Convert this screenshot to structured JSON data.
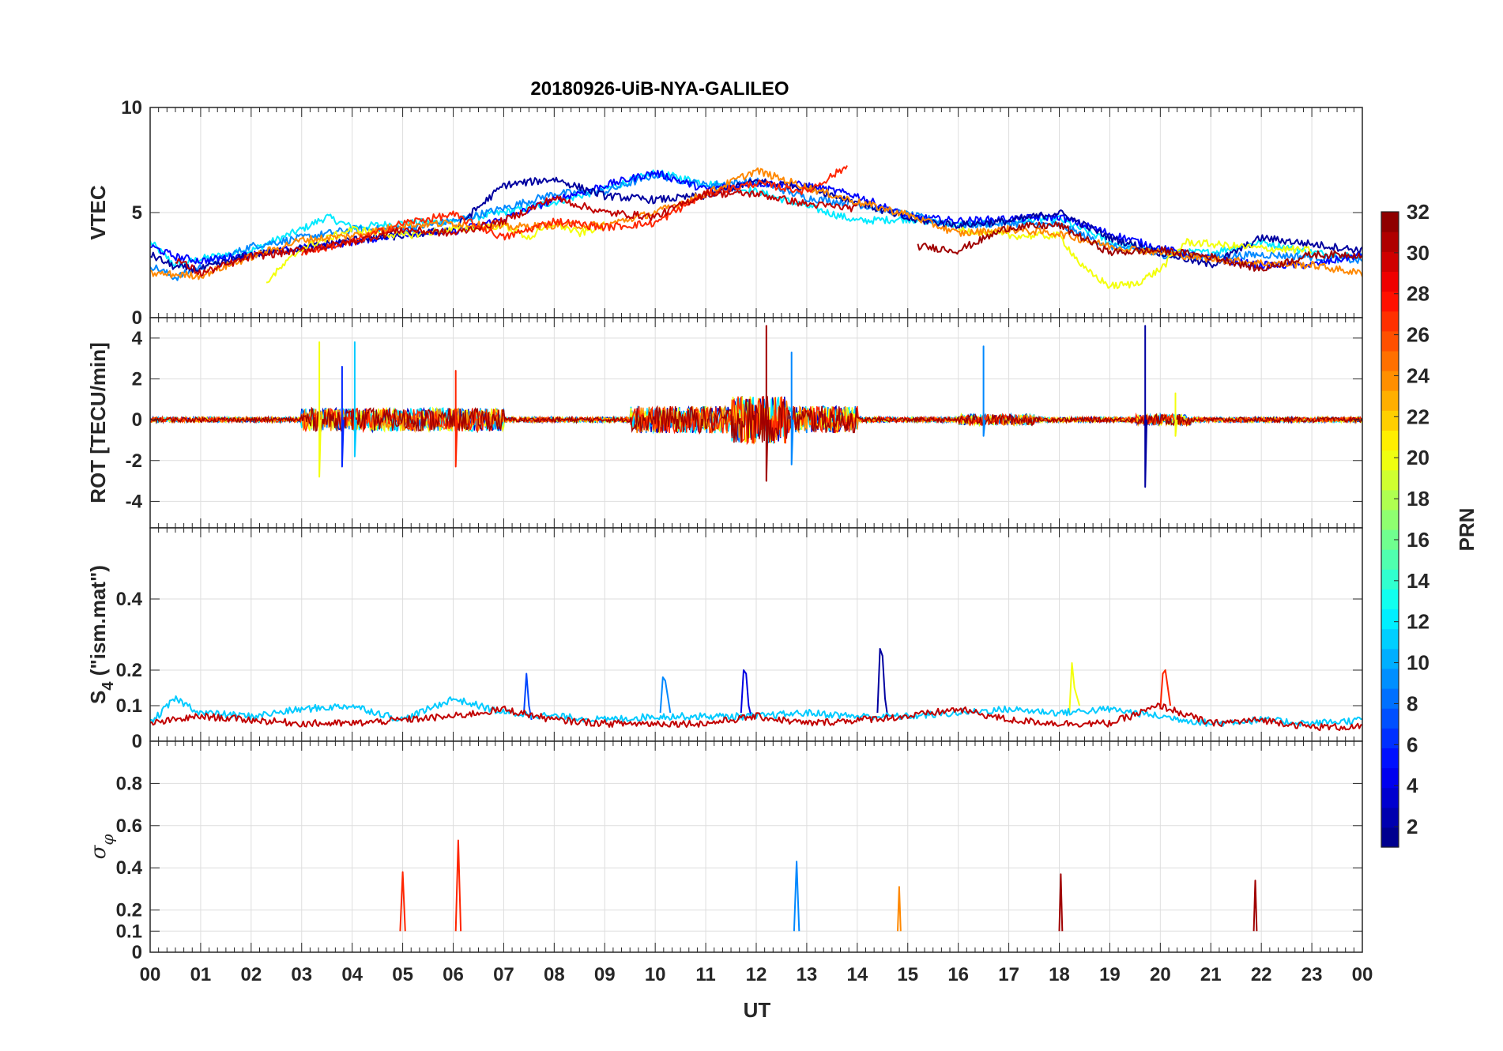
{
  "chart_data": {
    "title": "20180926-UiB-NYA-GALILEO",
    "type": "line",
    "grid": true,
    "x_axis": {
      "label": "UT",
      "range_hours": [
        0,
        24
      ],
      "tick_labels": [
        "00",
        "01",
        "02",
        "03",
        "04",
        "05",
        "06",
        "07",
        "08",
        "09",
        "10",
        "11",
        "12",
        "13",
        "14",
        "15",
        "16",
        "17",
        "18",
        "19",
        "20",
        "21",
        "22",
        "23",
        "00"
      ]
    },
    "colorbar": {
      "label": "PRN",
      "colormap": "jet",
      "range": [
        1,
        32
      ],
      "levels": 32,
      "tick_values": [
        2,
        4,
        6,
        8,
        10,
        12,
        14,
        16,
        18,
        20,
        22,
        24,
        26,
        28,
        30,
        32
      ],
      "tick_labels": [
        "2",
        "4",
        "6",
        "8",
        "10",
        "12",
        "14",
        "16",
        "18",
        "20",
        "22",
        "24",
        "26",
        "28",
        "30",
        "32"
      ]
    },
    "panels": [
      {
        "id": "vtec",
        "ylabel": "VTEC",
        "ylim": [
          0,
          10
        ],
        "yticks": [
          0,
          5,
          10
        ],
        "ytick_labels": [
          "0",
          "5",
          "10"
        ],
        "series": [
          {
            "prn": 12,
            "x": [
              0,
              0.5,
              1,
              2,
              3,
              3.5,
              4,
              5,
              6,
              7,
              8,
              9,
              10,
              11,
              12,
              13,
              14,
              15,
              16,
              17,
              18,
              19,
              20,
              21,
              22,
              23,
              24
            ],
            "y": [
              3.6,
              2.5,
              2.8,
              3.2,
              4.2,
              4.8,
              4.3,
              4.5,
              4.6,
              5.0,
              5.5,
              6.1,
              6.9,
              6.4,
              6.0,
              5.3,
              4.6,
              4.7,
              4.4,
              4.6,
              4.7,
              3.6,
              3.1,
              3.1,
              3.6,
              3.1,
              2.9
            ]
          },
          {
            "prn": 9,
            "x": [
              0,
              0.5,
              1,
              2,
              3,
              3.5,
              4,
              5,
              6,
              7,
              8,
              9,
              10,
              11,
              12,
              13,
              14,
              15,
              16,
              17,
              18,
              19,
              20,
              21,
              22,
              23,
              24
            ],
            "y": [
              2.5,
              1.9,
              2.4,
              3.4,
              3.8,
              4.0,
              4.2,
              4.2,
              4.6,
              5.2,
              5.9,
              6.0,
              6.8,
              6.3,
              6.5,
              5.7,
              5.4,
              4.9,
              4.4,
              4.5,
              4.4,
              3.4,
              3.0,
              2.9,
              3.0,
              2.9,
              2.7
            ]
          },
          {
            "prn": 5,
            "x": [
              0,
              0.5,
              1,
              2,
              3,
              4,
              5,
              6,
              7,
              8,
              9,
              10,
              11,
              12,
              13,
              14,
              15,
              16,
              17,
              18,
              19,
              20,
              21,
              22,
              23,
              24
            ],
            "y": [
              3.4,
              2.9,
              2.7,
              3.0,
              3.3,
              3.6,
              4.0,
              4.1,
              4.7,
              5.6,
              6.3,
              6.9,
              6.1,
              6.4,
              6.3,
              5.8,
              4.8,
              4.6,
              4.7,
              4.8,
              4.0,
              3.3,
              2.8,
              2.5,
              2.5,
              3.0
            ]
          },
          {
            "prn": 2,
            "x": [
              0,
              0.5,
              1,
              2,
              3,
              4,
              5,
              6,
              7,
              8,
              9,
              10,
              11,
              12,
              13,
              14,
              15,
              16,
              17,
              18,
              19,
              20,
              21,
              22,
              23,
              24
            ],
            "y": [
              3.0,
              2.4,
              2.3,
              3.0,
              3.3,
              3.7,
              3.9,
              4.2,
              6.3,
              6.6,
              5.8,
              5.6,
              5.8,
              6.5,
              6.2,
              5.5,
              4.7,
              4.4,
              4.6,
              5.0,
              3.8,
              3.1,
              2.5,
              3.8,
              3.5,
              3.2
            ]
          },
          {
            "prn": 20,
            "x": [
              2.3,
              3,
              4,
              5,
              6,
              7,
              7.5,
              8,
              8.5,
              9
            ],
            "y": [
              1.7,
              3.3,
              4.2,
              3.9,
              4.2,
              4.4,
              3.8,
              4.5,
              4.0,
              4.4
            ]
          },
          {
            "prn": 20,
            "x": [
              16,
              17,
              18,
              18.5,
              19,
              19.5,
              20,
              20.5,
              21,
              22,
              23
            ],
            "y": [
              4.2,
              3.9,
              3.9,
              2.3,
              1.5,
              1.6,
              2.3,
              3.6,
              3.5,
              3.3,
              3.2
            ]
          },
          {
            "prn": 24,
            "x": [
              0,
              1,
              2,
              3,
              4,
              5,
              6,
              7,
              8,
              9,
              10,
              11,
              12,
              13,
              14,
              15,
              16,
              17,
              18,
              19,
              20,
              21,
              22,
              23,
              24
            ],
            "y": [
              2.1,
              2.0,
              2.9,
              3.7,
              3.9,
              4.4,
              4.5,
              4.3,
              4.4,
              4.4,
              5.0,
              5.9,
              7.0,
              6.2,
              5.5,
              4.9,
              4.0,
              4.2,
              4.0,
              3.4,
              3.1,
              2.8,
              2.6,
              2.5,
              2.1
            ]
          },
          {
            "prn": 27,
            "x": [
              3,
              4,
              5,
              6,
              7,
              8,
              9,
              10,
              11,
              12,
              13,
              13.8
            ],
            "y": [
              3.1,
              3.6,
              4.5,
              4.9,
              3.8,
              4.6,
              4.3,
              4.5,
              5.9,
              6.4,
              6.0,
              7.2
            ]
          },
          {
            "prn": 30,
            "x": [
              0.5,
              1,
              2,
              3,
              4,
              5,
              6,
              7,
              8,
              9,
              10,
              11,
              12,
              13,
              14
            ],
            "y": [
              2.8,
              2.1,
              2.9,
              3.2,
              3.6,
              4.2,
              4.0,
              4.6,
              5.7,
              5.0,
              4.8,
              5.9,
              5.9,
              5.4,
              5.2
            ]
          },
          {
            "prn": 31,
            "x": [
              15.2,
              16,
              17,
              18,
              19,
              20,
              21,
              22,
              23,
              24
            ],
            "y": [
              3.4,
              3.2,
              4.3,
              4.4,
              3.1,
              3.2,
              2.9,
              2.3,
              3.0,
              3.0
            ]
          }
        ]
      },
      {
        "id": "rot",
        "ylabel": "ROT [TECU/min]",
        "ylim": [
          -5.3,
          5
        ],
        "yticks": [
          -4,
          -2,
          0,
          2,
          4
        ],
        "ytick_labels": [
          "-4",
          "-2",
          "0",
          "2",
          "4"
        ],
        "series": [
          {
            "prn": 20,
            "x": [
              3.35,
              3.35,
              3.35,
              3.38
            ],
            "y": [
              0,
              3.8,
              -2.8,
              0
            ]
          },
          {
            "prn": 11,
            "x": [
              4.05,
              4.05,
              4.05,
              4.08
            ],
            "y": [
              0,
              3.8,
              -1.8,
              0
            ]
          },
          {
            "prn": 6,
            "x": [
              3.8,
              3.8,
              3.8,
              3.83
            ],
            "y": [
              0,
              2.6,
              -2.3,
              0
            ]
          },
          {
            "prn": 27,
            "x": [
              6.05,
              6.05,
              6.05,
              6.08
            ],
            "y": [
              0,
              2.4,
              -2.3,
              0
            ]
          },
          {
            "prn": 31,
            "x": [
              12.2,
              12.2,
              12.2,
              12.23
            ],
            "y": [
              0,
              4.6,
              -3.0,
              0
            ]
          },
          {
            "prn": 9,
            "x": [
              12.7,
              12.7,
              12.7,
              12.73
            ],
            "y": [
              0,
              3.3,
              -2.2,
              0
            ]
          },
          {
            "prn": 9,
            "x": [
              16.5,
              16.5,
              16.5,
              16.53
            ],
            "y": [
              0,
              3.6,
              -0.8,
              0
            ]
          },
          {
            "prn": 2,
            "x": [
              19.7,
              19.7,
              19.7,
              19.73
            ],
            "y": [
              0,
              4.6,
              -3.3,
              0
            ]
          },
          {
            "prn": 20,
            "x": [
              20.3,
              20.3,
              20.3,
              20.33
            ],
            "y": [
              0,
              1.3,
              -0.8,
              0
            ]
          }
        ]
      },
      {
        "id": "s4",
        "ylabel": "S4 (\"ism.mat\")",
        "ylabel_main": "S",
        "ylabel_sub": "4",
        "ylabel_rest": " (\"ism.mat\")",
        "ylim": [
          0,
          0.6
        ],
        "yticks": [
          0,
          0.1,
          0.2,
          0.4
        ],
        "ytick_labels": [
          "0",
          "0.1",
          "0.2",
          "0.4"
        ],
        "series": [
          {
            "prn": 2,
            "x": [
              14.4,
              14.45,
              14.5,
              14.55,
              14.6
            ],
            "y": [
              0.08,
              0.26,
              0.24,
              0.12,
              0.07
            ]
          },
          {
            "prn": 4,
            "x": [
              11.7,
              11.75,
              11.8,
              11.85,
              11.9
            ],
            "y": [
              0.08,
              0.2,
              0.19,
              0.1,
              0.07
            ]
          },
          {
            "prn": 7,
            "x": [
              7.4,
              7.45,
              7.5,
              7.55
            ],
            "y": [
              0.08,
              0.19,
              0.1,
              0.06
            ]
          },
          {
            "prn": 9,
            "x": [
              10.1,
              10.15,
              10.2,
              10.3
            ],
            "y": [
              0.08,
              0.18,
              0.17,
              0.08
            ]
          },
          {
            "prn": 20,
            "x": [
              18.2,
              18.25,
              18.3,
              18.4
            ],
            "y": [
              0.08,
              0.22,
              0.15,
              0.1
            ]
          },
          {
            "prn": 27,
            "x": [
              20.0,
              20.05,
              20.1,
              20.2
            ],
            "y": [
              0.09,
              0.19,
              0.2,
              0.1
            ]
          },
          {
            "prn": 11,
            "x": [
              0,
              0.5,
              1,
              2,
              3,
              4,
              5,
              6,
              7,
              8,
              9,
              10,
              11,
              12,
              13,
              14,
              15,
              16,
              17,
              18,
              19,
              20,
              21,
              22,
              23,
              24
            ],
            "y": [
              0.05,
              0.12,
              0.08,
              0.07,
              0.09,
              0.1,
              0.06,
              0.12,
              0.08,
              0.07,
              0.06,
              0.07,
              0.07,
              0.07,
              0.08,
              0.07,
              0.07,
              0.08,
              0.09,
              0.08,
              0.09,
              0.07,
              0.05,
              0.06,
              0.05,
              0.06
            ]
          },
          {
            "prn": 30,
            "x": [
              0,
              1,
              2,
              3,
              4,
              5,
              6,
              7,
              8,
              9,
              10,
              11,
              12,
              13,
              14,
              15,
              16,
              17,
              18,
              19,
              20,
              21,
              22,
              23,
              24
            ],
            "y": [
              0.05,
              0.07,
              0.06,
              0.05,
              0.05,
              0.06,
              0.07,
              0.09,
              0.06,
              0.05,
              0.05,
              0.05,
              0.07,
              0.05,
              0.06,
              0.07,
              0.09,
              0.06,
              0.05,
              0.05,
              0.1,
              0.05,
              0.06,
              0.04,
              0.04
            ]
          }
        ]
      },
      {
        "id": "sigma_phi",
        "ylabel": "σφ",
        "ylabel_main": "σ",
        "ylabel_sub": "φ",
        "ylim": [
          0,
          1
        ],
        "yticks": [
          0,
          0.1,
          0.2,
          0.4,
          0.6,
          0.8
        ],
        "ytick_labels": [
          "0",
          "0.1",
          "0.2",
          "0.4",
          "0.6",
          "0.8"
        ],
        "series": [
          {
            "prn": 27,
            "x": [
              6.05,
              6.1,
              6.15
            ],
            "y": [
              0.1,
              0.53,
              0.1
            ]
          },
          {
            "prn": 27,
            "x": [
              4.95,
              5.0,
              5.05
            ],
            "y": [
              0.1,
              0.38,
              0.1
            ]
          },
          {
            "prn": 9,
            "x": [
              12.75,
              12.8,
              12.85
            ],
            "y": [
              0.1,
              0.43,
              0.1
            ]
          },
          {
            "prn": 31,
            "x": [
              18.0,
              18.03,
              18.06
            ],
            "y": [
              0.1,
              0.37,
              0.1
            ]
          },
          {
            "prn": 31,
            "x": [
              21.85,
              21.88,
              21.91
            ],
            "y": [
              0.1,
              0.34,
              0.1
            ]
          },
          {
            "prn": 24,
            "x": [
              14.8,
              14.83,
              14.86
            ],
            "y": [
              0.1,
              0.31,
              0.1
            ]
          }
        ]
      }
    ]
  }
}
